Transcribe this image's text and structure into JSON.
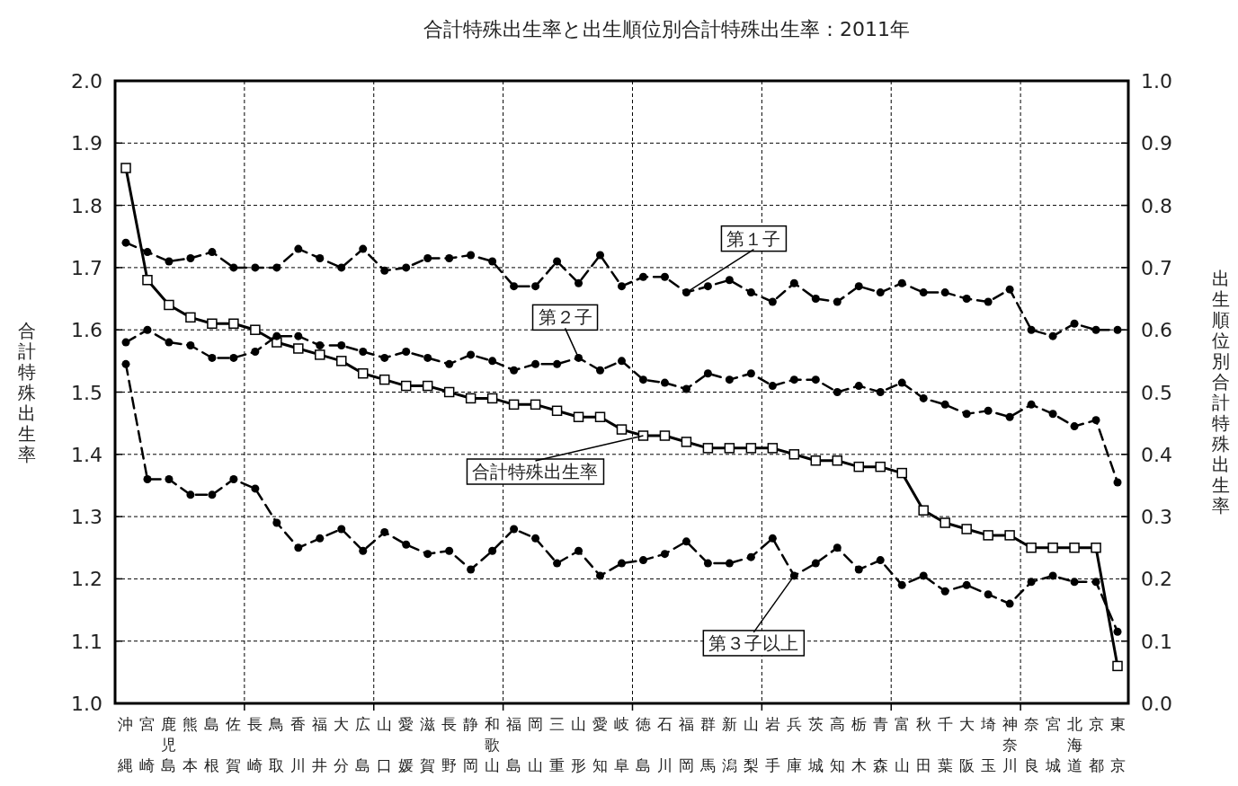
{
  "chart_data": {
    "type": "line",
    "title": "合計特殊出生率と出生順位別合計特殊出生率：2011年",
    "ylabel": "合計特殊出生率",
    "y2label": "出生順位別合計特殊出生率",
    "categories": [
      "沖縄",
      "宮崎",
      "鹿児島",
      "熊本",
      "島根",
      "佐賀",
      "長崎",
      "鳥取",
      "香川",
      "福井",
      "大分",
      "広島",
      "山口",
      "愛媛",
      "滋賀",
      "長野",
      "静岡",
      "和歌山",
      "福島",
      "岡山",
      "三重",
      "山形",
      "愛知",
      "岐阜",
      "徳島",
      "石川",
      "福岡",
      "群馬",
      "新潟",
      "山梨",
      "岩手",
      "兵庫",
      "茨城",
      "高知",
      "栃木",
      "青森",
      "富山",
      "秋田",
      "千葉",
      "大阪",
      "埼玉",
      "神奈川",
      "奈良",
      "宮城",
      "北海道",
      "京都",
      "東京"
    ],
    "ylim": [
      1.0,
      2.0
    ],
    "yticks": [
      {
        "value": 1.0,
        "label": "1.0"
      },
      {
        "value": 1.1,
        "label": "1.1"
      },
      {
        "value": 1.2,
        "label": "1.2"
      },
      {
        "value": 1.3,
        "label": "1.3"
      },
      {
        "value": 1.4,
        "label": "1.4"
      },
      {
        "value": 1.5,
        "label": "1.5"
      },
      {
        "value": 1.6,
        "label": "1.6"
      },
      {
        "value": 1.7,
        "label": "1.7"
      },
      {
        "value": 1.8,
        "label": "1.8"
      },
      {
        "value": 1.9,
        "label": "1.9"
      },
      {
        "value": 2.0,
        "label": "2.0"
      }
    ],
    "y2lim": [
      0.0,
      1.0
    ],
    "y2ticks": [
      {
        "value": 0.0,
        "label": "0.0"
      },
      {
        "value": 0.1,
        "label": "0.1"
      },
      {
        "value": 0.2,
        "label": "0.2"
      },
      {
        "value": 0.3,
        "label": "0.3"
      },
      {
        "value": 0.4,
        "label": "0.4"
      },
      {
        "value": 0.5,
        "label": "0.5"
      },
      {
        "value": 0.6,
        "label": "0.6"
      },
      {
        "value": 0.7,
        "label": "0.7"
      },
      {
        "value": 0.8,
        "label": "0.8"
      },
      {
        "value": 0.9,
        "label": "0.9"
      },
      {
        "value": 1.0,
        "label": "1.0"
      }
    ],
    "grid": true,
    "series": [
      {
        "color": "#000000",
        "marker": "square",
        "line_style": "solid",
        "values": [
          1.86,
          1.68,
          1.64,
          1.62,
          1.61,
          1.61,
          1.6,
          1.58,
          1.57,
          1.56,
          1.55,
          1.53,
          1.52,
          1.51,
          1.51,
          1.5,
          1.49,
          1.49,
          1.48,
          1.48,
          1.47,
          1.46,
          1.46,
          1.44,
          1.43,
          1.43,
          1.42,
          1.41,
          1.41,
          1.41,
          1.41,
          1.4,
          1.39,
          1.39,
          1.38,
          1.38,
          1.37,
          1.31,
          1.29,
          1.28,
          1.27,
          1.27,
          1.25,
          1.25,
          1.25,
          1.25,
          1.06
        ]
      },
      {
        "color": "#000000",
        "marker": "circle",
        "line_style": "dashed",
        "axis": "y2",
        "values": [
          0.74,
          0.725,
          0.71,
          0.715,
          0.725,
          0.7,
          0.7,
          0.7,
          0.73,
          0.715,
          0.7,
          0.73,
          0.695,
          0.7,
          0.715,
          0.715,
          0.72,
          0.71,
          0.67,
          0.67,
          0.71,
          0.675,
          0.72,
          0.67,
          0.685,
          0.685,
          0.66,
          0.67,
          0.68,
          0.66,
          0.645,
          0.675,
          0.65,
          0.645,
          0.67,
          0.66,
          0.675,
          0.66,
          0.66,
          0.65,
          0.645,
          0.665,
          0.6,
          0.59,
          0.61,
          0.6,
          0.6
        ]
      },
      {
        "color": "#000000",
        "marker": "circle",
        "line_style": "dashed",
        "axis": "y2",
        "values": [
          0.58,
          0.6,
          0.58,
          0.575,
          0.555,
          0.555,
          0.565,
          0.59,
          0.59,
          0.575,
          0.575,
          0.565,
          0.555,
          0.565,
          0.555,
          0.545,
          0.56,
          0.55,
          0.535,
          0.545,
          0.545,
          0.555,
          0.535,
          0.55,
          0.52,
          0.515,
          0.505,
          0.53,
          0.52,
          0.53,
          0.51,
          0.52,
          0.52,
          0.5,
          0.51,
          0.5,
          0.515,
          0.49,
          0.48,
          0.465,
          0.47,
          0.46,
          0.48,
          0.465,
          0.445,
          0.455,
          0.355
        ]
      },
      {
        "color": "#000000",
        "marker": "circle",
        "line_style": "dashed",
        "axis": "y2",
        "values": [
          0.545,
          0.36,
          0.36,
          0.335,
          0.335,
          0.36,
          0.345,
          0.29,
          0.25,
          0.265,
          0.28,
          0.245,
          0.275,
          0.255,
          0.24,
          0.245,
          0.215,
          0.245,
          0.28,
          0.265,
          0.225,
          0.245,
          0.205,
          0.225,
          0.23,
          0.24,
          0.26,
          0.225,
          0.225,
          0.235,
          0.265,
          0.205,
          0.225,
          0.25,
          0.215,
          0.23,
          0.19,
          0.205,
          0.18,
          0.19,
          0.175,
          0.16,
          0.195,
          0.205,
          0.195,
          0.195,
          0.115
        ]
      }
    ],
    "annotations": [
      {
        "text": "第１子",
        "x": "福岡",
        "y": 1.66
      },
      {
        "text": "第２子",
        "x": "山形",
        "y": 1.555
      },
      {
        "text": "合計特殊出生率",
        "x": "徳島",
        "y": 1.43
      },
      {
        "text": "第３子以上",
        "x": "兵庫",
        "y": 1.205
      }
    ]
  }
}
